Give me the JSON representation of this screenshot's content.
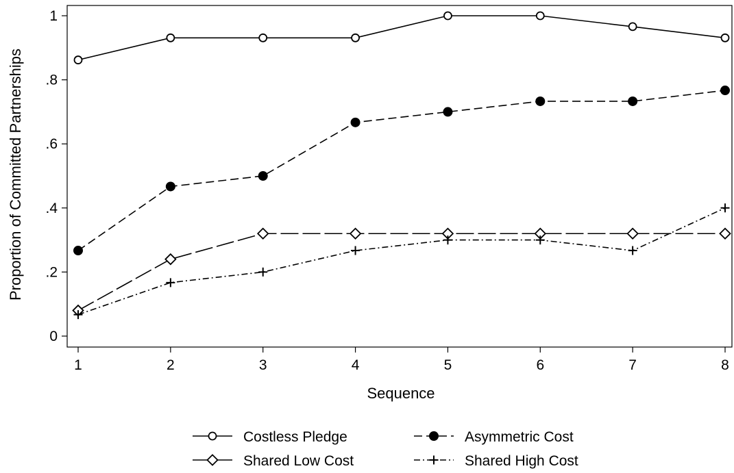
{
  "chart_data": {
    "type": "line",
    "title": "",
    "xlabel": "Sequence",
    "ylabel": "Proportion of Committed Partnerships",
    "x": [
      1,
      2,
      3,
      4,
      5,
      6,
      7,
      8
    ],
    "xlim": [
      1,
      8
    ],
    "ylim": [
      0,
      1
    ],
    "x_ticks": [
      "1",
      "2",
      "3",
      "4",
      "5",
      "6",
      "7",
      "8"
    ],
    "y_ticks": [
      {
        "value": 0,
        "label": "0"
      },
      {
        "value": 0.2,
        "label": ".2"
      },
      {
        "value": 0.4,
        "label": ".4"
      },
      {
        "value": 0.6,
        "label": ".6"
      },
      {
        "value": 0.8,
        "label": ".8"
      },
      {
        "value": 1,
        "label": "1"
      }
    ],
    "grid": false,
    "legend_position": "bottom",
    "series": [
      {
        "name": "Costless Pledge",
        "values": [
          0.862,
          0.931,
          0.931,
          0.931,
          1.0,
          1.0,
          0.966,
          0.931
        ],
        "line_style": "solid",
        "marker": "hollow-circle",
        "color": "#000000"
      },
      {
        "name": "Asymmetric Cost",
        "values": [
          0.267,
          0.467,
          0.5,
          0.667,
          0.7,
          0.733,
          0.733,
          0.767
        ],
        "line_style": "short-dash",
        "marker": "filled-circle",
        "color": "#000000"
      },
      {
        "name": "Shared Low Cost",
        "values": [
          0.08,
          0.24,
          0.32,
          0.32,
          0.32,
          0.32,
          0.32,
          0.32
        ],
        "line_style": "long-dash",
        "marker": "hollow-diamond",
        "color": "#000000"
      },
      {
        "name": "Shared High Cost",
        "values": [
          0.067,
          0.167,
          0.2,
          0.267,
          0.3,
          0.3,
          0.267,
          0.4
        ],
        "line_style": "dash-dot",
        "marker": "plus",
        "color": "#000000"
      }
    ]
  }
}
